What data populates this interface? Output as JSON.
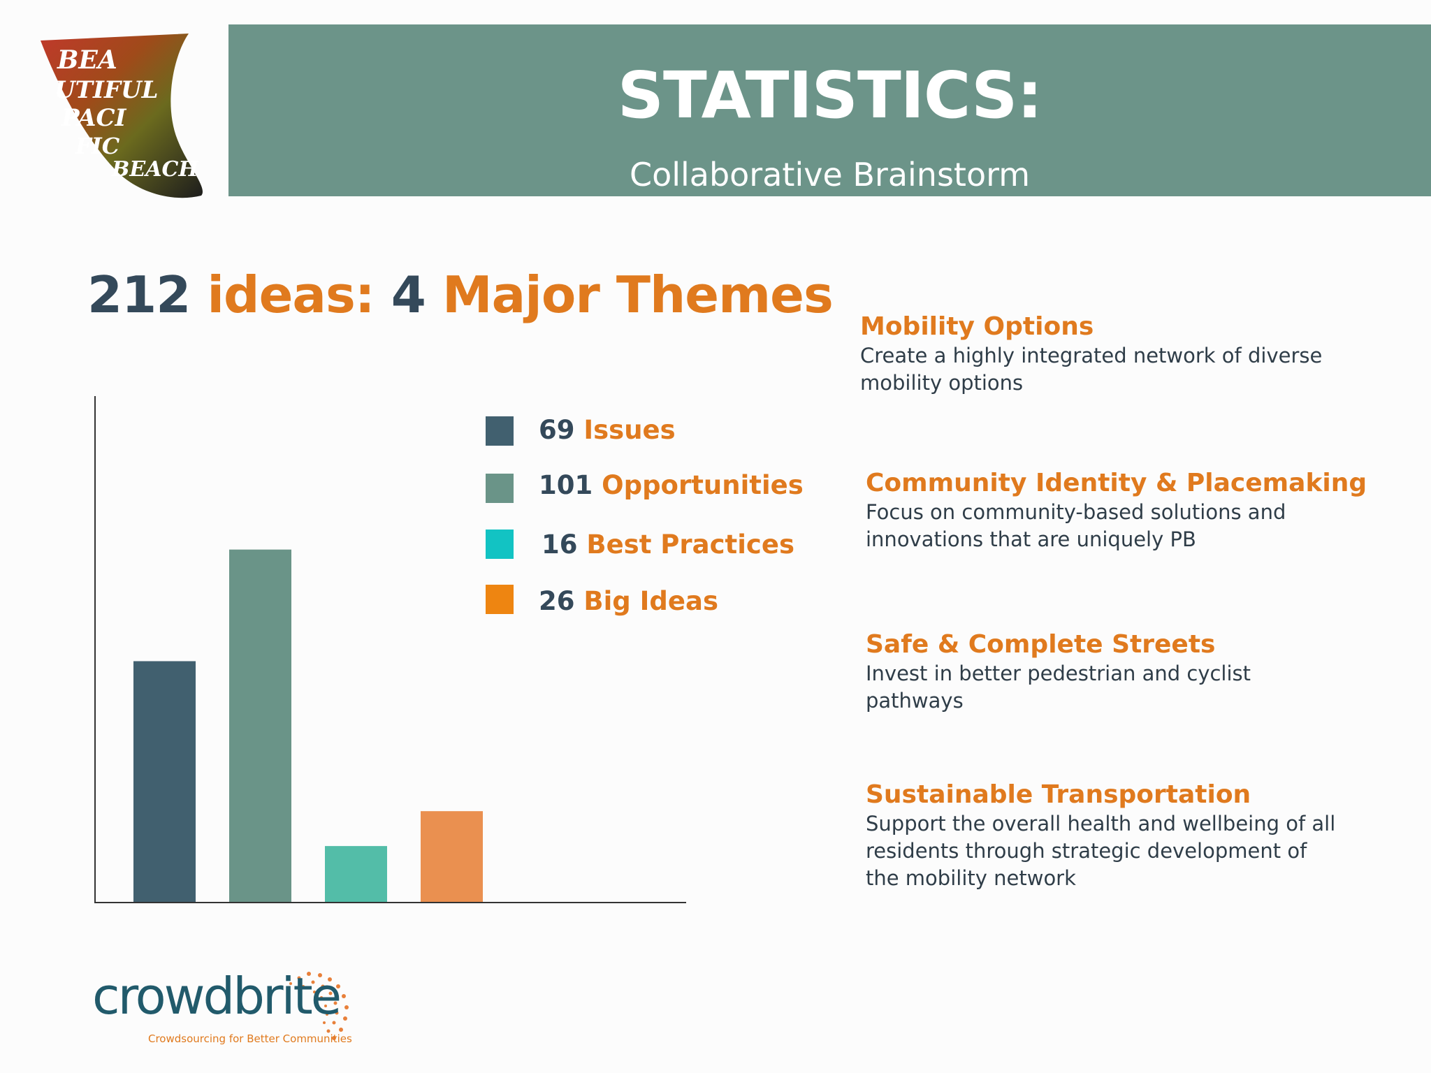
{
  "header": {
    "title": "STATISTICS:",
    "subtitle": "Collaborative Brainstorm"
  },
  "headline": {
    "count": "212",
    "ideas_word": "ideas:",
    "themes_count": "4",
    "themes_word": "Major Themes"
  },
  "logo": {
    "lettering": "BEAUTIFUL PACIFIC BEACH"
  },
  "chart_data": {
    "type": "bar",
    "categories": [
      "Issues",
      "Opportunities",
      "Best Practices",
      "Big Ideas"
    ],
    "values": [
      69,
      101,
      16,
      26
    ],
    "colors": [
      "#41606f",
      "#6a9488",
      "#53bda8",
      "#ea9050"
    ],
    "ylim": [
      0,
      145
    ],
    "grid": false,
    "legend_placement": "top-right",
    "legend": [
      {
        "value": "69",
        "label": "Issues",
        "color": "#41606f"
      },
      {
        "value": "101",
        "label": "Opportunities",
        "color": "#6a9488"
      },
      {
        "value": "16",
        "label": "Best Practices",
        "color": "#12c3c3"
      },
      {
        "value": "26",
        "label": "Big Ideas",
        "color": "#ee8511"
      }
    ]
  },
  "themes": [
    {
      "title": "Mobility Options",
      "description": "Create a highly integrated network of diverse mobility options"
    },
    {
      "title": "Community Identity & Placemaking",
      "description": "Focus on community-based solutions and innovations that are uniquely PB"
    },
    {
      "title": "Safe & Complete Streets",
      "description": "Invest in better pedestrian and cyclist pathways"
    },
    {
      "title": "Sustainable Transportation",
      "description": "Support the overall health and wellbeing of all residents through strategic development of the mobility network"
    }
  ],
  "footer": {
    "brand": "crowdbrite",
    "tagline": "Crowdsourcing for Better Communities"
  },
  "colors": {
    "header_bar": "#6c9489",
    "accent_orange": "#e07a1e",
    "text_dark": "#34495a"
  }
}
